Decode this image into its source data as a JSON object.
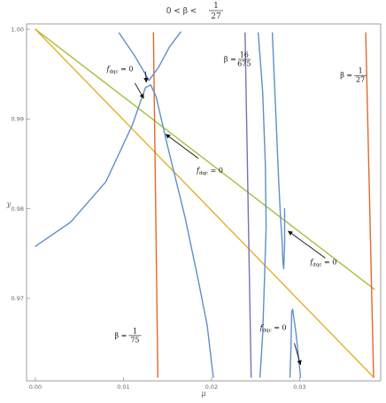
{
  "chart_data": {
    "type": "line",
    "title": {
      "lhs": "0 < β <",
      "frac_num": "1",
      "frac_den": "27"
    },
    "xlabel": "μ",
    "ylabel": "y",
    "xlim": [
      -0.001,
      0.0392
    ],
    "ylim": [
      0.9608,
      1.0006
    ],
    "x_ticks": [
      0.0,
      0.01,
      0.02,
      0.03
    ],
    "x_tick_labels": [
      "0.00",
      "0.01",
      "0.02",
      "0.03"
    ],
    "y_ticks": [
      0.97,
      0.98,
      0.99,
      1.0
    ],
    "y_tick_labels": [
      "0.97",
      "0.98",
      "0.99",
      "1.00"
    ],
    "grid": false,
    "series": [
      {
        "color": "#a8bf3a",
        "points": [
          [
            0.0,
            1.0
          ],
          [
            0.0385,
            0.971
          ]
        ]
      },
      {
        "color": "#e3b02a",
        "points": [
          [
            0.0,
            1.0
          ],
          [
            0.0384,
            0.9612
          ]
        ]
      },
      {
        "color": "#e06a2b",
        "points": [
          [
            0.0134,
            0.9996
          ],
          [
            0.0139,
            0.9612
          ]
        ]
      },
      {
        "color": "#e06a2b",
        "points": [
          [
            0.0375,
            0.9996
          ],
          [
            0.0384,
            0.9612
          ]
        ]
      },
      {
        "color": "#7b6fb3",
        "points": [
          [
            0.0238,
            0.9996
          ],
          [
            0.0245,
            0.9612
          ]
        ]
      },
      {
        "color": "#5f8fc8",
        "points": [
          [
            0.0,
            0.9758
          ],
          [
            0.004,
            0.9785
          ],
          [
            0.008,
            0.983
          ],
          [
            0.011,
            0.9893
          ],
          [
            0.0125,
            0.9935
          ],
          [
            0.0131,
            0.9938
          ],
          [
            0.0137,
            0.9925
          ],
          [
            0.015,
            0.987
          ],
          [
            0.017,
            0.979
          ],
          [
            0.0185,
            0.972
          ],
          [
            0.0195,
            0.967
          ],
          [
            0.0202,
            0.9612
          ]
        ]
      },
      {
        "color": "#5f8fc8",
        "points": [
          [
            0.0095,
            0.9996
          ],
          [
            0.0113,
            0.997
          ],
          [
            0.0129,
            0.9943
          ],
          [
            0.014,
            0.9958
          ],
          [
            0.0152,
            0.998
          ],
          [
            0.0165,
            0.9997
          ]
        ]
      },
      {
        "color": "#5f8fc8",
        "points": [
          [
            0.0253,
            0.9996
          ],
          [
            0.0258,
            0.993
          ],
          [
            0.0261,
            0.985
          ],
          [
            0.0262,
            0.978
          ],
          [
            0.026,
            0.972
          ],
          [
            0.0258,
            0.966
          ],
          [
            0.0255,
            0.9612
          ]
        ]
      },
      {
        "color": "#5f8fc8",
        "points": [
          [
            0.0269,
            0.9996
          ],
          [
            0.0273,
            0.9905
          ],
          [
            0.0276,
            0.9835
          ],
          [
            0.0278,
            0.9795
          ],
          [
            0.028,
            0.9765
          ],
          [
            0.0281,
            0.974
          ],
          [
            0.0282,
            0.9733
          ],
          [
            0.0283,
            0.976
          ],
          [
            0.0283,
            0.98
          ]
        ]
      },
      {
        "color": "#5f8fc8",
        "points": [
          [
            0.0289,
            0.9612
          ],
          [
            0.029,
            0.964
          ],
          [
            0.0291,
            0.9685
          ],
          [
            0.0292,
            0.9688
          ],
          [
            0.0296,
            0.966
          ],
          [
            0.0301,
            0.9612
          ]
        ]
      }
    ],
    "annotations": [
      {
        "type": "label",
        "text": "f",
        "sub": "dqc",
        "rest": " = 0",
        "x": 0.0096,
        "y": 0.9953
      },
      {
        "type": "label",
        "text": "f",
        "sub": "dqc",
        "rest": " = 0",
        "x": 0.0198,
        "y": 0.984
      },
      {
        "type": "label",
        "text": "f",
        "sub": "dqc",
        "rest": " = 0",
        "x": 0.0327,
        "y": 0.9738
      },
      {
        "type": "label",
        "text": "f",
        "sub": "dqc",
        "rest": " = 0",
        "x": 0.027,
        "y": 0.9665
      },
      {
        "type": "fraction",
        "lhs": "β =",
        "num": "16",
        "den": "675",
        "x": 0.023,
        "y": 0.9967
      },
      {
        "type": "fraction",
        "lhs": "β =",
        "num": "1",
        "den": "27",
        "x": 0.0362,
        "y": 0.9949
      },
      {
        "type": "fraction",
        "lhs": "β =",
        "num": "1",
        "den": "75",
        "x": 0.0106,
        "y": 0.9659
      }
    ],
    "arrows": [
      {
        "from": [
          0.0125,
          0.9953
        ],
        "to": [
          0.0126,
          0.9941
        ]
      },
      {
        "from": [
          0.0113,
          0.994
        ],
        "to": [
          0.0123,
          0.9923
        ]
      },
      {
        "from": [
          0.0185,
          0.9856
        ],
        "to": [
          0.0148,
          0.9883
        ]
      },
      {
        "from": [
          0.0329,
          0.9745
        ],
        "to": [
          0.0287,
          0.9775
        ]
      },
      {
        "from": [
          0.0294,
          0.965
        ],
        "to": [
          0.0301,
          0.9626
        ]
      }
    ]
  }
}
